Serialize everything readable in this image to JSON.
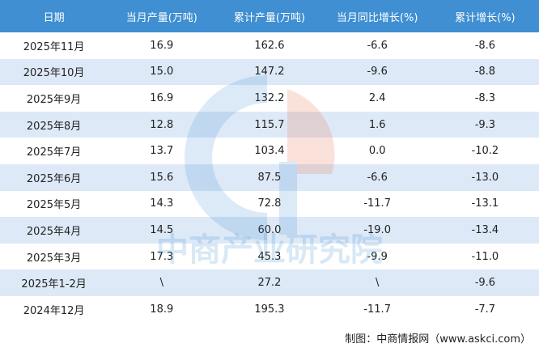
{
  "table": {
    "header": [
      "日期",
      "当月产量(万吨)",
      "累计产量(万吨)",
      "当月同比增长(%)",
      "累计增长(%)"
    ],
    "rows": [
      [
        "2025年11月",
        "16.9",
        "162.6",
        "-6.6",
        "-8.6"
      ],
      [
        "2025年10月",
        "15.0",
        "147.2",
        "-9.6",
        "-8.8"
      ],
      [
        "2025年9月",
        "16.9",
        "132.2",
        "2.4",
        "-8.3"
      ],
      [
        "2025年8月",
        "12.8",
        "115.7",
        "1.6",
        "-9.3"
      ],
      [
        "2025年7月",
        "13.7",
        "103.4",
        "0.0",
        "-10.2"
      ],
      [
        "2025年6月",
        "15.6",
        "87.5",
        "-6.6",
        "-13.0"
      ],
      [
        "2025年5月",
        "14.3",
        "72.8",
        "-11.7",
        "-13.1"
      ],
      [
        "2025年4月",
        "14.5",
        "60.0",
        "-19.0",
        "-13.4"
      ],
      [
        "2025年3月",
        "17.3",
        "45.3",
        "-9.9",
        "-11.0"
      ],
      [
        "2025年1-2月",
        "\\",
        "27.2",
        "\\",
        "-9.6"
      ],
      [
        "2024年12月",
        "18.9",
        "195.3",
        "-11.7",
        "-7.7"
      ]
    ]
  },
  "watermark": "中商产业研究院",
  "source": "制图：中商情报网（www.askci.com）"
}
